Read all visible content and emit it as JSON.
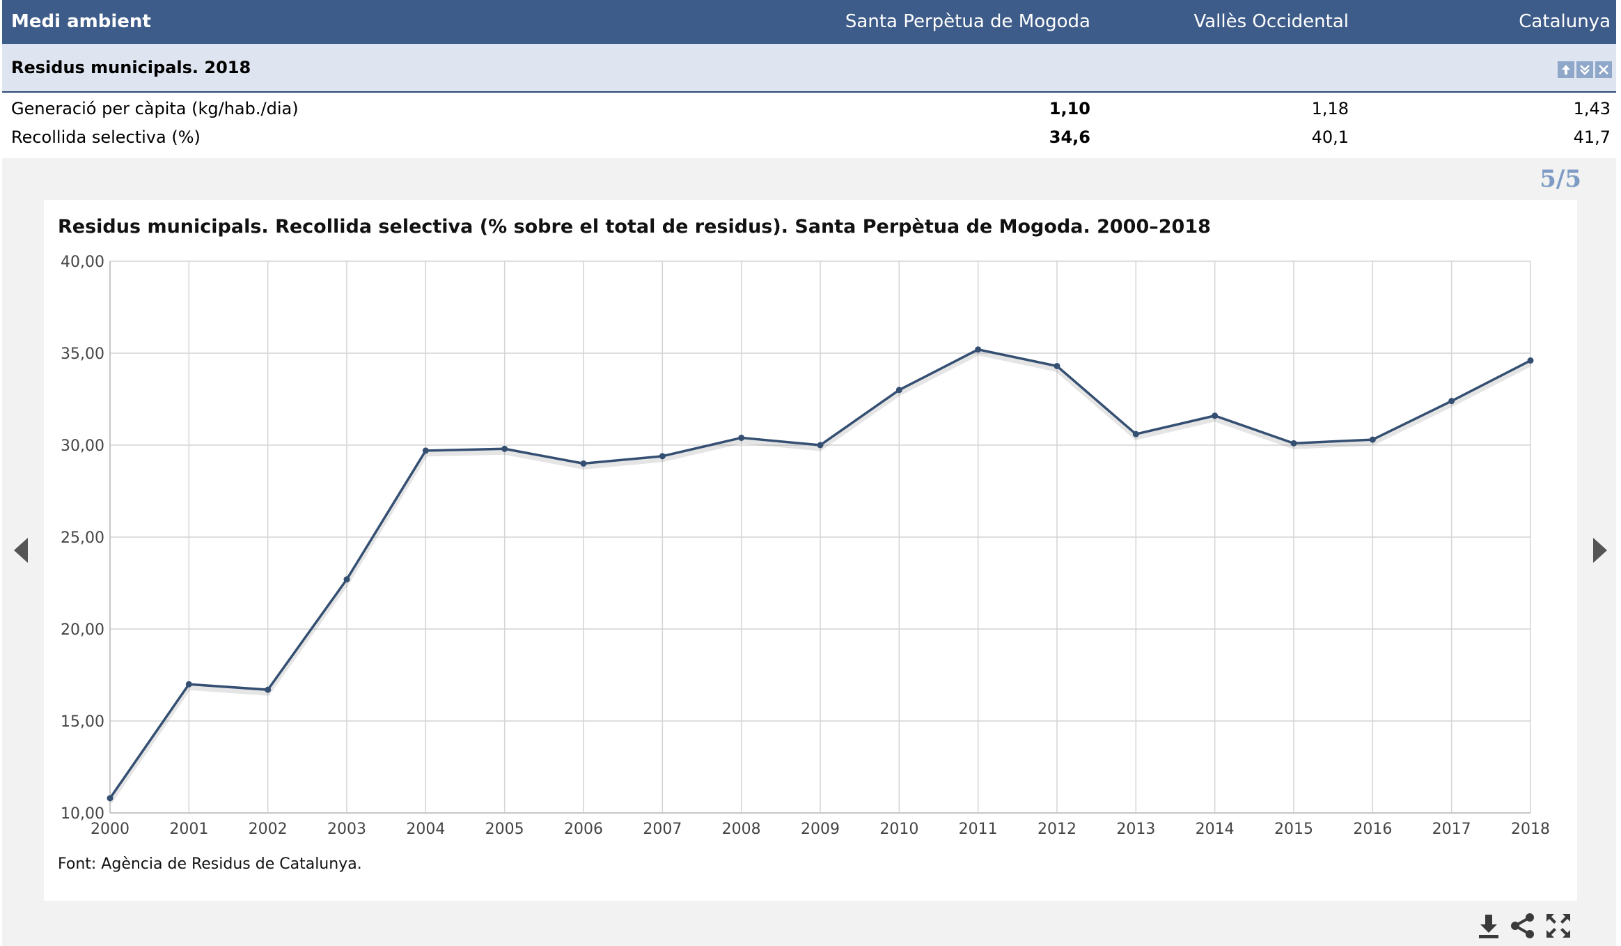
{
  "header": {
    "title": "Medi ambient",
    "columns": [
      "Santa Perpètua de Mogoda",
      "Vallès Occidental",
      "Catalunya"
    ]
  },
  "section": {
    "title": "Residus municipals. 2018"
  },
  "rows": [
    {
      "label": "Generació per càpita (kg/hab./dia)",
      "values": [
        "1,10",
        "1,18",
        "1,43"
      ]
    },
    {
      "label": "Recollida selectiva (%)",
      "values": [
        "34,6",
        "40,1",
        "41,7"
      ]
    }
  ],
  "pager": "5/5",
  "icons": {
    "section_controls": [
      "arrow-up-icon",
      "double-chevron-down-icon",
      "close-icon"
    ],
    "nav": [
      "triangle-left-icon",
      "triangle-right-icon"
    ],
    "tools": [
      "download-icon",
      "share-icon",
      "fullscreen-icon"
    ]
  },
  "colors": {
    "header_bg": "#3e5c89",
    "subheader_bg": "#dfe5f0",
    "line": "#344f72",
    "pager": "#7d9bc4",
    "grid": "#d4d4d4"
  },
  "chart_data": {
    "type": "line",
    "title": "Residus municipals. Recollida selectiva (% sobre el total de residus). Santa Perpètua de Mogoda. 2000–2018",
    "x": [
      "2000",
      "2001",
      "2002",
      "2003",
      "2004",
      "2005",
      "2006",
      "2007",
      "2008",
      "2009",
      "2010",
      "2011",
      "2012",
      "2013",
      "2014",
      "2015",
      "2016",
      "2017",
      "2018"
    ],
    "values": [
      10.8,
      17.0,
      16.7,
      22.7,
      29.7,
      29.8,
      29.0,
      29.4,
      30.4,
      30.0,
      33.0,
      35.2,
      34.3,
      30.6,
      31.6,
      30.1,
      30.3,
      32.4,
      34.6
    ],
    "ylim": [
      10,
      40
    ],
    "yticks": [
      "10,00",
      "15,00",
      "20,00",
      "25,00",
      "30,00",
      "35,00",
      "40,00"
    ],
    "grid": true,
    "source": "Font: Agència de Residus de Catalunya."
  }
}
